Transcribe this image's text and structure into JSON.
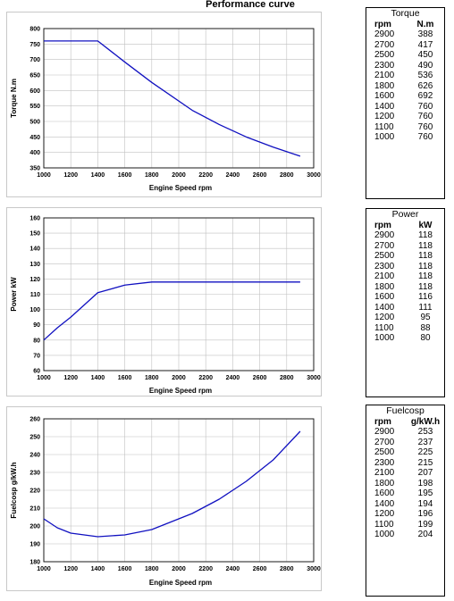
{
  "page_title": "Performance curve",
  "chart_data": [
    {
      "type": "line",
      "x": [
        1000,
        1100,
        1200,
        1400,
        1600,
        1800,
        2100,
        2300,
        2500,
        2700,
        2900
      ],
      "series": [
        {
          "values": [
            760,
            760,
            760,
            760,
            692,
            626,
            536,
            490,
            450,
            417,
            388
          ]
        }
      ],
      "xlabel": "Engine Speed rpm",
      "ylabel": "Torque N.m",
      "xlim": [
        1000,
        3000
      ],
      "ylim": [
        350,
        800
      ],
      "xticks": [
        "1000",
        "1200",
        "1400",
        "1600",
        "1800",
        "2000",
        "2200",
        "2400",
        "2600",
        "2800",
        "3000"
      ],
      "yticks": [
        "350",
        "400",
        "450",
        "500",
        "550",
        "600",
        "650",
        "700",
        "750",
        "800"
      ],
      "grid": true,
      "line_color": "#1010c0"
    },
    {
      "type": "line",
      "x": [
        1000,
        1100,
        1200,
        1400,
        1600,
        1800,
        2100,
        2300,
        2500,
        2700,
        2900
      ],
      "series": [
        {
          "values": [
            80,
            88,
            95,
            111,
            116,
            118,
            118,
            118,
            118,
            118,
            118
          ]
        }
      ],
      "xlabel": "Engine Speed rpm",
      "ylabel": "Power kW",
      "xlim": [
        1000,
        3000
      ],
      "ylim": [
        60,
        160
      ],
      "xticks": [
        "1000",
        "1200",
        "1400",
        "1600",
        "1800",
        "2000",
        "2200",
        "2400",
        "2600",
        "2800",
        "3000"
      ],
      "yticks": [
        "60",
        "70",
        "80",
        "90",
        "100",
        "110",
        "120",
        "130",
        "140",
        "150",
        "160"
      ],
      "grid": true,
      "line_color": "#1010c0"
    },
    {
      "type": "line",
      "x": [
        1000,
        1100,
        1200,
        1400,
        1600,
        1800,
        2100,
        2300,
        2500,
        2700,
        2900
      ],
      "series": [
        {
          "values": [
            204,
            199,
            196,
            194,
            195,
            198,
            207,
            215,
            225,
            237,
            253
          ]
        }
      ],
      "xlabel": "Engine Speed rpm",
      "ylabel": "Fuelcosp g/kW.h",
      "xlim": [
        1000,
        3000
      ],
      "ylim": [
        180,
        260
      ],
      "xticks": [
        "1000",
        "1200",
        "1400",
        "1600",
        "1800",
        "2000",
        "2200",
        "2400",
        "2600",
        "2800",
        "3000"
      ],
      "yticks": [
        "180",
        "190",
        "200",
        "210",
        "220",
        "230",
        "240",
        "250",
        "260"
      ],
      "grid": true,
      "line_color": "#1010c0"
    }
  ],
  "tables": [
    {
      "title": "Torque",
      "headers": [
        "rpm",
        "N.m"
      ],
      "rows": [
        [
          "2900",
          "388"
        ],
        [
          "2700",
          "417"
        ],
        [
          "2500",
          "450"
        ],
        [
          "2300",
          "490"
        ],
        [
          "2100",
          "536"
        ],
        [
          "1800",
          "626"
        ],
        [
          "1600",
          "692"
        ],
        [
          "1400",
          "760"
        ],
        [
          "1200",
          "760"
        ],
        [
          "1100",
          "760"
        ],
        [
          "1000",
          "760"
        ]
      ]
    },
    {
      "title": "Power",
      "headers": [
        "rpm",
        "kW"
      ],
      "rows": [
        [
          "2900",
          "118"
        ],
        [
          "2700",
          "118"
        ],
        [
          "2500",
          "118"
        ],
        [
          "2300",
          "118"
        ],
        [
          "2100",
          "118"
        ],
        [
          "1800",
          "118"
        ],
        [
          "1600",
          "116"
        ],
        [
          "1400",
          "111"
        ],
        [
          "1200",
          "95"
        ],
        [
          "1100",
          "88"
        ],
        [
          "1000",
          "80"
        ]
      ]
    },
    {
      "title": "Fuelcosp",
      "headers": [
        "rpm",
        "g/kW.h"
      ],
      "rows": [
        [
          "2900",
          "253"
        ],
        [
          "2700",
          "237"
        ],
        [
          "2500",
          "225"
        ],
        [
          "2300",
          "215"
        ],
        [
          "2100",
          "207"
        ],
        [
          "1800",
          "198"
        ],
        [
          "1600",
          "195"
        ],
        [
          "1400",
          "194"
        ],
        [
          "1200",
          "196"
        ],
        [
          "1100",
          "199"
        ],
        [
          "1000",
          "204"
        ]
      ]
    }
  ]
}
